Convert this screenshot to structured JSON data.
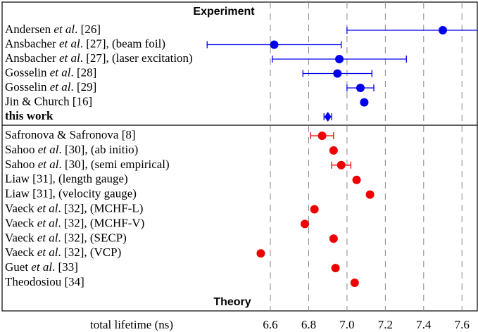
{
  "chart_data": {
    "type": "dot",
    "xlabel": "total lifetime (ns)",
    "xlim": [
      5.2,
      7.68
    ],
    "xticks": [
      6.6,
      6.8,
      {
        "value": 7,
        "label": "7.0"
      },
      7.2,
      7.4,
      7.6
    ],
    "grid": true,
    "series": [
      {
        "name": "Experiment",
        "color": "#0000ee",
        "labels": [
          [
            {
              "text": "Andersen "
            },
            {
              "text": "et al",
              "italic": true
            },
            {
              "text": ". [26]"
            }
          ],
          [
            {
              "text": "Ansbacher "
            },
            {
              "text": "et al",
              "italic": true
            },
            {
              "text": ". [27], (beam foil)"
            }
          ],
          [
            {
              "text": "Ansbacher "
            },
            {
              "text": "et al",
              "italic": true
            },
            {
              "text": ". [27], (laser excitation)"
            }
          ],
          [
            {
              "text": "Gosselin "
            },
            {
              "text": "et al",
              "italic": true
            },
            {
              "text": ". [28]"
            }
          ],
          [
            {
              "text": "Gosselin "
            },
            {
              "text": "et al",
              "italic": true
            },
            {
              "text": ". [29]"
            }
          ],
          [
            {
              "text": "Jin & Church [16]"
            }
          ],
          [
            {
              "text": "this work",
              "bold": true
            }
          ]
        ],
        "values": [
          7.5,
          6.62,
          6.96,
          6.95,
          7.07,
          7.09,
          6.9
        ],
        "errors": [
          0.5,
          0.35,
          0.35,
          0.18,
          0.07,
          0.01,
          0.02
        ],
        "markers": [
          "circle",
          "circle",
          "circle",
          "circle",
          "circle",
          "circle",
          "diamond"
        ]
      },
      {
        "name": "Theory",
        "color": "#ee0000",
        "labels": [
          [
            {
              "text": "Safronova & Safronova [8]"
            }
          ],
          [
            {
              "text": "Sahoo "
            },
            {
              "text": "et al",
              "italic": true
            },
            {
              "text": ". [30], (ab initio)"
            }
          ],
          [
            {
              "text": "Sahoo "
            },
            {
              "text": "et al",
              "italic": true
            },
            {
              "text": ". [30], (semi empirical)"
            }
          ],
          [
            {
              "text": "Liaw [31], (length gauge)"
            }
          ],
          [
            {
              "text": "Liaw [31], (velocity gauge)"
            }
          ],
          [
            {
              "text": "Vaeck "
            },
            {
              "text": "et al",
              "italic": true
            },
            {
              "text": ". [32], (MCHF-L)"
            }
          ],
          [
            {
              "text": "Vaeck "
            },
            {
              "text": "et al",
              "italic": true
            },
            {
              "text": ". [32], (MCHF-V)"
            }
          ],
          [
            {
              "text": "Vaeck "
            },
            {
              "text": "et al",
              "italic": true
            },
            {
              "text": ". [32], (SECP)"
            }
          ],
          [
            {
              "text": "Vaeck "
            },
            {
              "text": "et al",
              "italic": true
            },
            {
              "text": ". [32], (VCP)"
            }
          ],
          [
            {
              "text": "Guet "
            },
            {
              "text": "et al",
              "italic": true
            },
            {
              "text": ". [33]"
            }
          ],
          [
            {
              "text": "Theodosiou [34]"
            }
          ]
        ],
        "values": [
          6.87,
          6.93,
          6.97,
          7.05,
          7.12,
          6.83,
          6.78,
          6.93,
          6.55,
          6.94,
          7.04
        ],
        "errors": [
          0.06,
          null,
          0.05,
          null,
          null,
          null,
          null,
          null,
          null,
          null,
          null
        ]
      }
    ]
  }
}
